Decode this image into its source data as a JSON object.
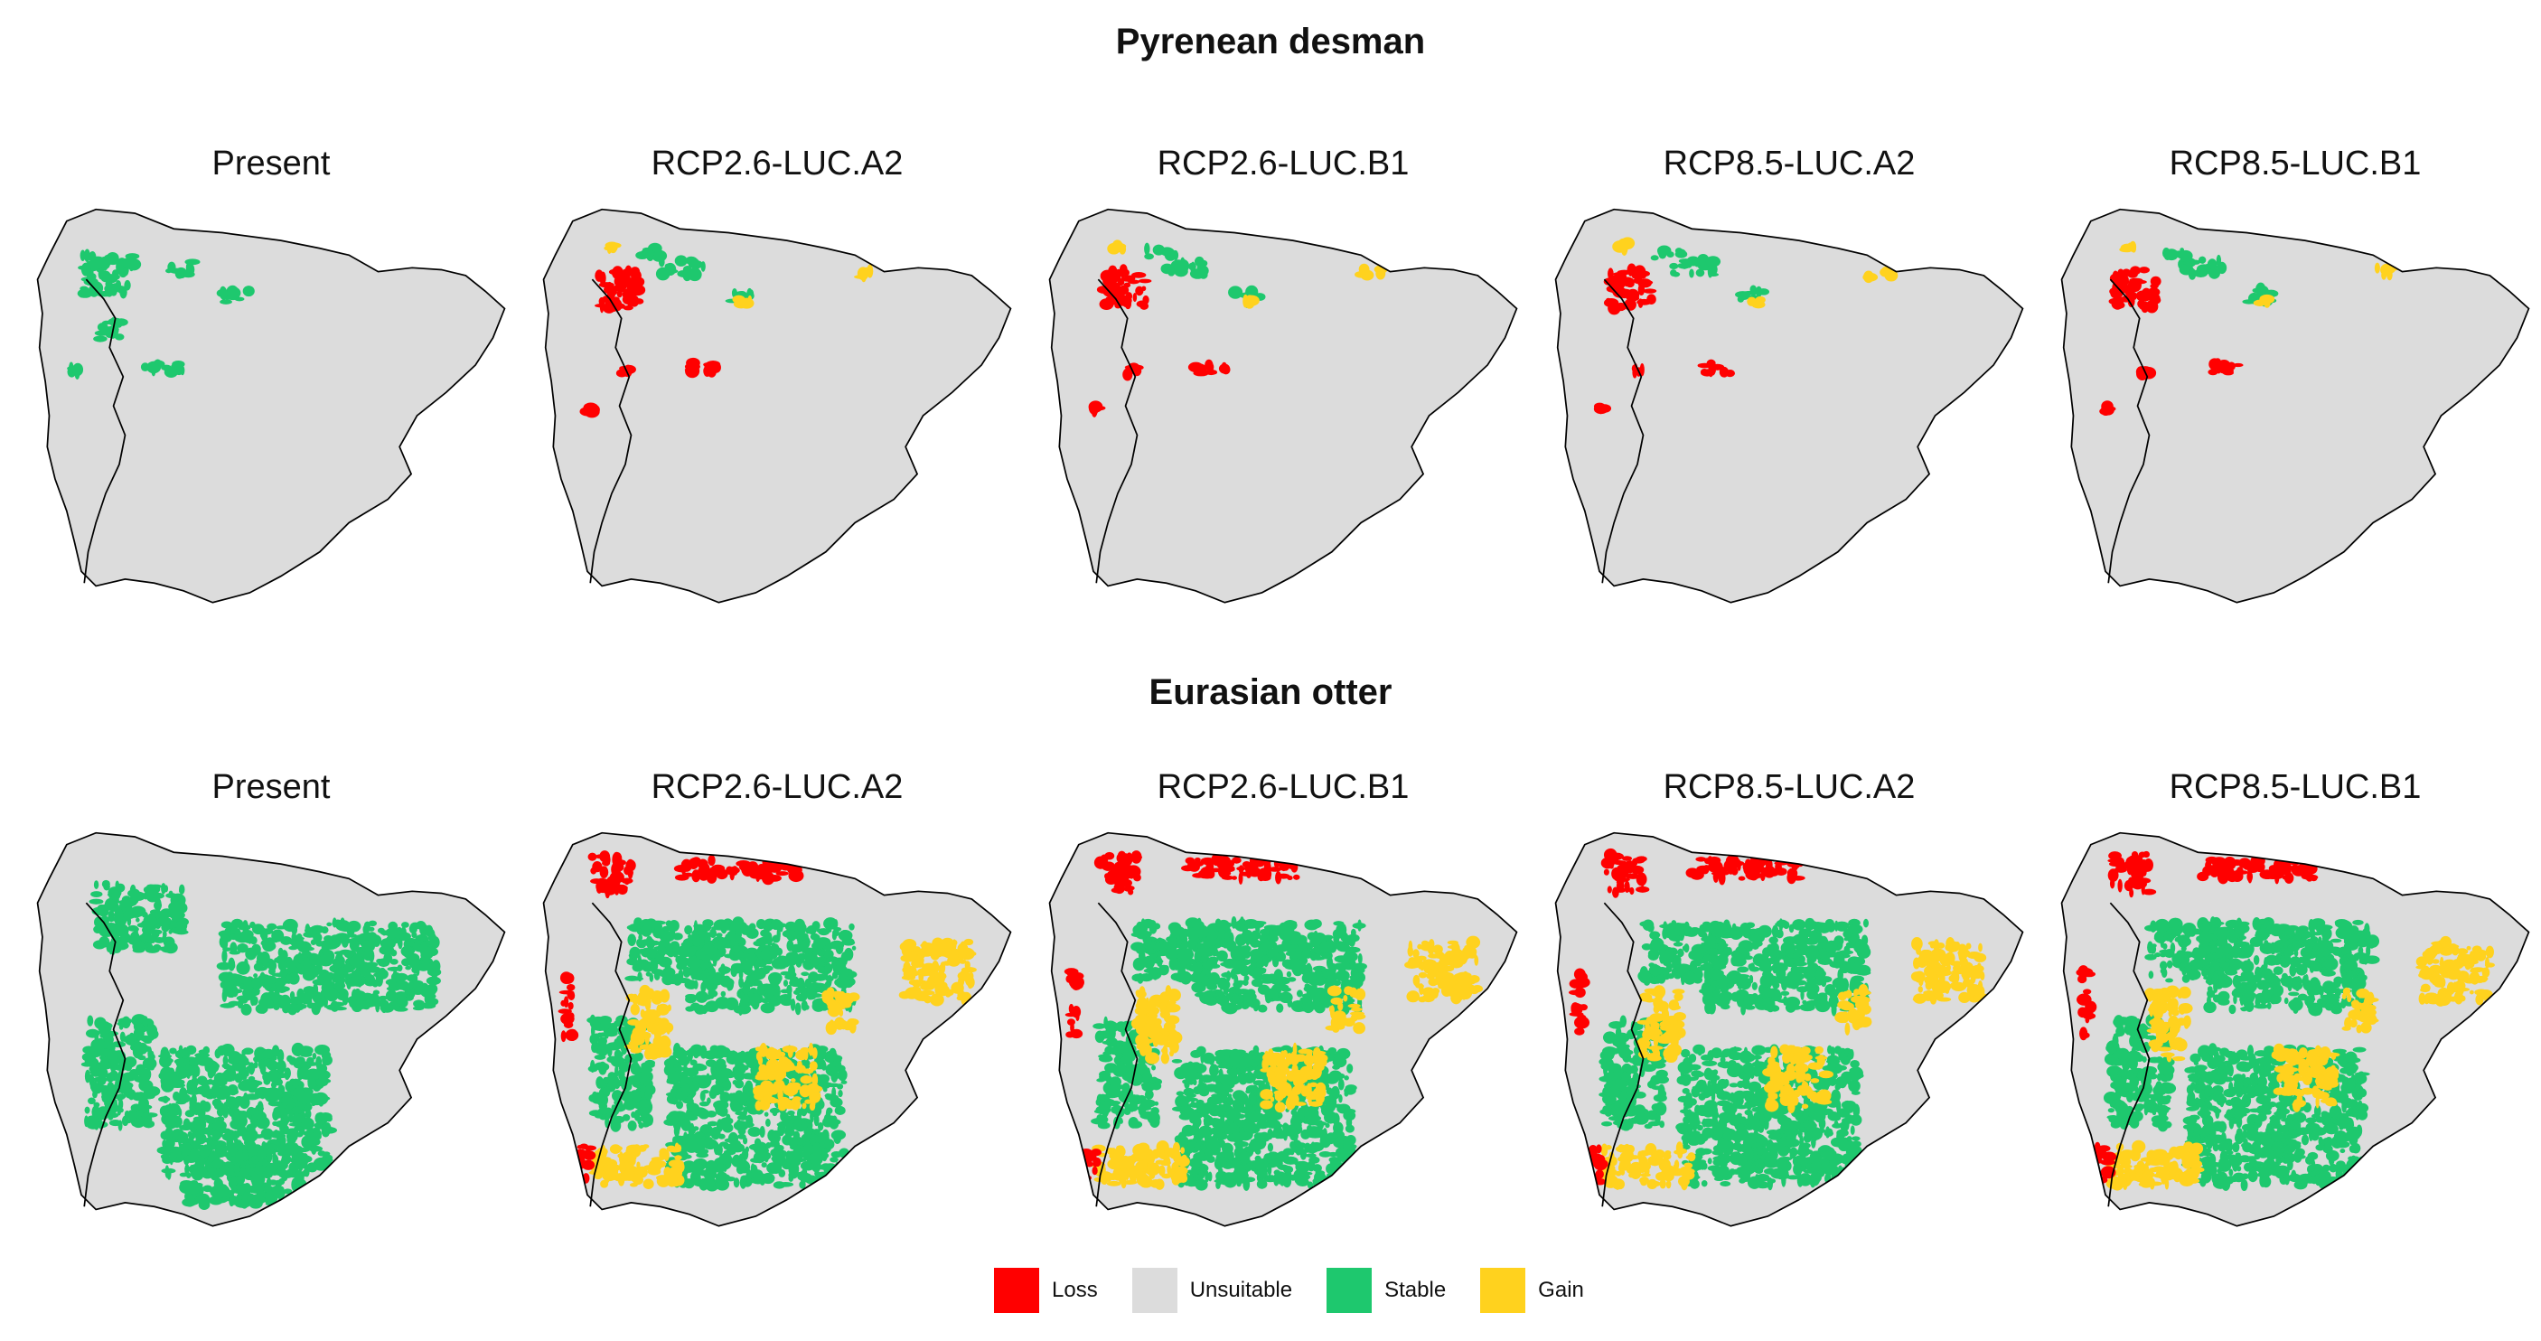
{
  "figure": {
    "sections": [
      {
        "title": "Pyrenean desman",
        "panels": [
          {
            "label": "Present",
            "classes": [
              "Unsuitable",
              "Stable"
            ]
          },
          {
            "label": "RCP2.6-LUC.A2",
            "classes": [
              "Loss",
              "Unsuitable",
              "Stable",
              "Gain"
            ]
          },
          {
            "label": "RCP2.6-LUC.B1",
            "classes": [
              "Loss",
              "Unsuitable",
              "Stable",
              "Gain"
            ]
          },
          {
            "label": "RCP8.5-LUC.A2",
            "classes": [
              "Loss",
              "Unsuitable",
              "Stable",
              "Gain"
            ]
          },
          {
            "label": "RCP8.5-LUC.B1",
            "classes": [
              "Loss",
              "Unsuitable",
              "Stable",
              "Gain"
            ]
          }
        ]
      },
      {
        "title": "Eurasian otter",
        "panels": [
          {
            "label": "Present",
            "classes": [
              "Unsuitable",
              "Stable"
            ]
          },
          {
            "label": "RCP2.6-LUC.A2",
            "classes": [
              "Loss",
              "Unsuitable",
              "Stable",
              "Gain"
            ]
          },
          {
            "label": "RCP2.6-LUC.B1",
            "classes": [
              "Loss",
              "Unsuitable",
              "Stable",
              "Gain"
            ]
          },
          {
            "label": "RCP8.5-LUC.A2",
            "classes": [
              "Loss",
              "Unsuitable",
              "Stable",
              "Gain"
            ]
          },
          {
            "label": "RCP8.5-LUC.B1",
            "classes": [
              "Loss",
              "Unsuitable",
              "Stable",
              "Gain"
            ]
          }
        ]
      }
    ],
    "legend": [
      {
        "label": "Loss",
        "color": "#ff0000"
      },
      {
        "label": "Unsuitable",
        "color": "#dcdcdc"
      },
      {
        "label": "Stable",
        "color": "#1ec86e"
      },
      {
        "label": "Gain",
        "color": "#ffd21e"
      }
    ]
  }
}
